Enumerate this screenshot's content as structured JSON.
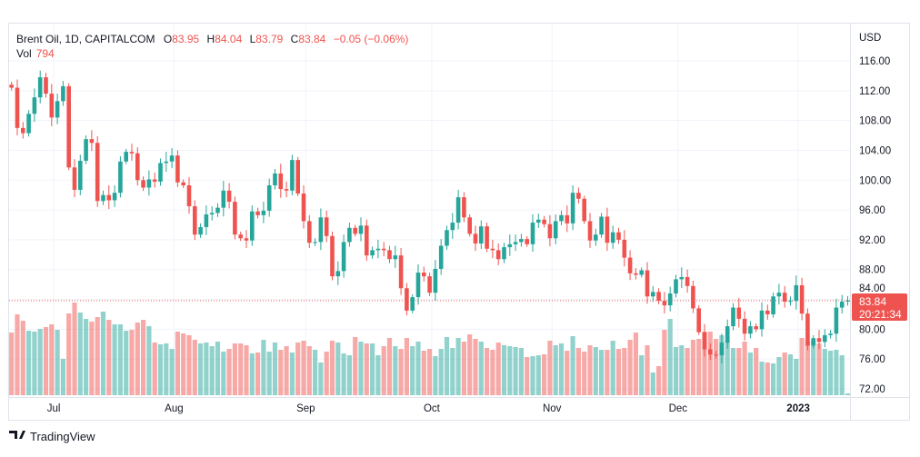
{
  "header": {
    "symbol": "Brent Oil, 1D, CAPITALCOM",
    "o_label": "O",
    "o_value": "83.95",
    "h_label": "H",
    "h_value": "84.04",
    "l_label": "L",
    "l_value": "83.79",
    "c_label": "C",
    "c_value": "83.84",
    "change": "−0.05 (−0.06%)",
    "vol_label": "Vol",
    "vol_value": "794"
  },
  "price_axis": {
    "currency": "USD",
    "last_price": "83.84",
    "countdown": "20:21:34"
  },
  "branding": {
    "logo_text": "TradingView"
  },
  "colors": {
    "up": "#26a69a",
    "down": "#ef5350",
    "grid": "#f0f3fa"
  },
  "chart_data": {
    "type": "candlestick",
    "title": "Brent Oil, 1D, CAPITALCOM",
    "ylabel": "USD",
    "ylim": [
      72,
      116
    ],
    "yticks": [
      "116.00",
      "112.00",
      "108.00",
      "104.00",
      "100.00",
      "96.00",
      "92.00",
      "88.00",
      "84.00",
      "80.00",
      "76.00",
      "72.00"
    ],
    "xticks": [
      {
        "label": "Jul",
        "bar": 8
      },
      {
        "label": "Aug",
        "bar": 29
      },
      {
        "label": "Sep",
        "bar": 52
      },
      {
        "label": "Oct",
        "bar": 74
      },
      {
        "label": "Nov",
        "bar": 95
      },
      {
        "label": "Dec",
        "bar": 117
      },
      {
        "label": "2023",
        "bar": 138,
        "bold": true
      }
    ],
    "first_open": 112.8,
    "close": [
      112.4,
      107.0,
      106.3,
      108.9,
      111.1,
      113.8,
      111.6,
      108.4,
      110.6,
      112.6,
      101.7,
      98.7,
      102.6,
      105.5,
      105.0,
      97.2,
      98.0,
      97.3,
      98.3,
      102.5,
      103.8,
      103.6,
      100.0,
      99.0,
      100.1,
      99.8,
      102.3,
      102.5,
      103.3,
      99.7,
      99.3,
      96.5,
      92.7,
      93.7,
      95.4,
      95.6,
      96.3,
      98.6,
      97.1,
      92.7,
      92.2,
      91.9,
      95.8,
      95.3,
      95.9,
      99.3,
      100.9,
      98.8,
      98.6,
      102.7,
      98.2,
      94.5,
      91.6,
      91.7,
      95.0,
      92.5,
      87.1,
      87.8,
      91.7,
      93.6,
      92.8,
      93.9,
      89.9,
      90.6,
      90.8,
      90.6,
      89.4,
      89.9,
      85.5,
      82.5,
      84.3,
      87.6,
      87.1,
      84.9,
      88.1,
      91.2,
      93.3,
      94.3,
      97.7,
      95.0,
      92.8,
      91.5,
      93.8,
      90.8,
      90.6,
      89.4,
      91.0,
      91.4,
      91.7,
      92.1,
      91.4,
      94.3,
      94.7,
      94.1,
      92.2,
      94.5,
      95.3,
      94.2,
      98.3,
      97.5,
      94.5,
      91.9,
      92.7,
      95.1,
      91.6,
      93.0,
      92.0,
      89.6,
      87.5,
      87.3,
      87.9,
      84.4,
      85.0,
      83.8,
      83.2,
      84.8,
      86.7,
      87.0,
      85.8,
      82.8,
      79.6,
      77.3,
      76.6,
      76.5,
      78.2,
      80.4,
      82.9,
      81.4,
      79.4,
      80.4,
      80.0,
      82.5,
      82.0,
      84.4,
      84.9,
      83.7,
      83.8,
      85.9,
      82.1,
      77.8,
      78.8,
      78.3,
      79.2,
      79.4,
      82.9,
      83.7,
      83.84
    ],
    "volume_relative": [
      207,
      267,
      246,
      213,
      210,
      219,
      225,
      234,
      216,
      120,
      270,
      306,
      273,
      252,
      243,
      258,
      276,
      249,
      234,
      234,
      213,
      216,
      240,
      249,
      228,
      174,
      168,
      171,
      153,
      210,
      204,
      198,
      183,
      171,
      174,
      162,
      177,
      144,
      153,
      171,
      171,
      165,
      138,
      141,
      183,
      144,
      174,
      150,
      162,
      141,
      174,
      180,
      162,
      150,
      108,
      144,
      180,
      174,
      138,
      132,
      192,
      177,
      171,
      171,
      132,
      162,
      189,
      162,
      153,
      189,
      162,
      177,
      147,
      153,
      129,
      153,
      192,
      156,
      189,
      177,
      201,
      186,
      177,
      156,
      150,
      174,
      165,
      162,
      159,
      156,
      126,
      129,
      132,
      135,
      180,
      165,
      171,
      147,
      195,
      156,
      144,
      165,
      159,
      150,
      150,
      180,
      153,
      156,
      183,
      207,
      132,
      165,
      75,
      96,
      216,
      252,
      159,
      165,
      156,
      183,
      186,
      210,
      210,
      186,
      198,
      180,
      156,
      156,
      177,
      141,
      156,
      111,
      108,
      105,
      126,
      141,
      135,
      120,
      189,
      180,
      180,
      171,
      153,
      147,
      150,
      132,
      6
    ]
  }
}
